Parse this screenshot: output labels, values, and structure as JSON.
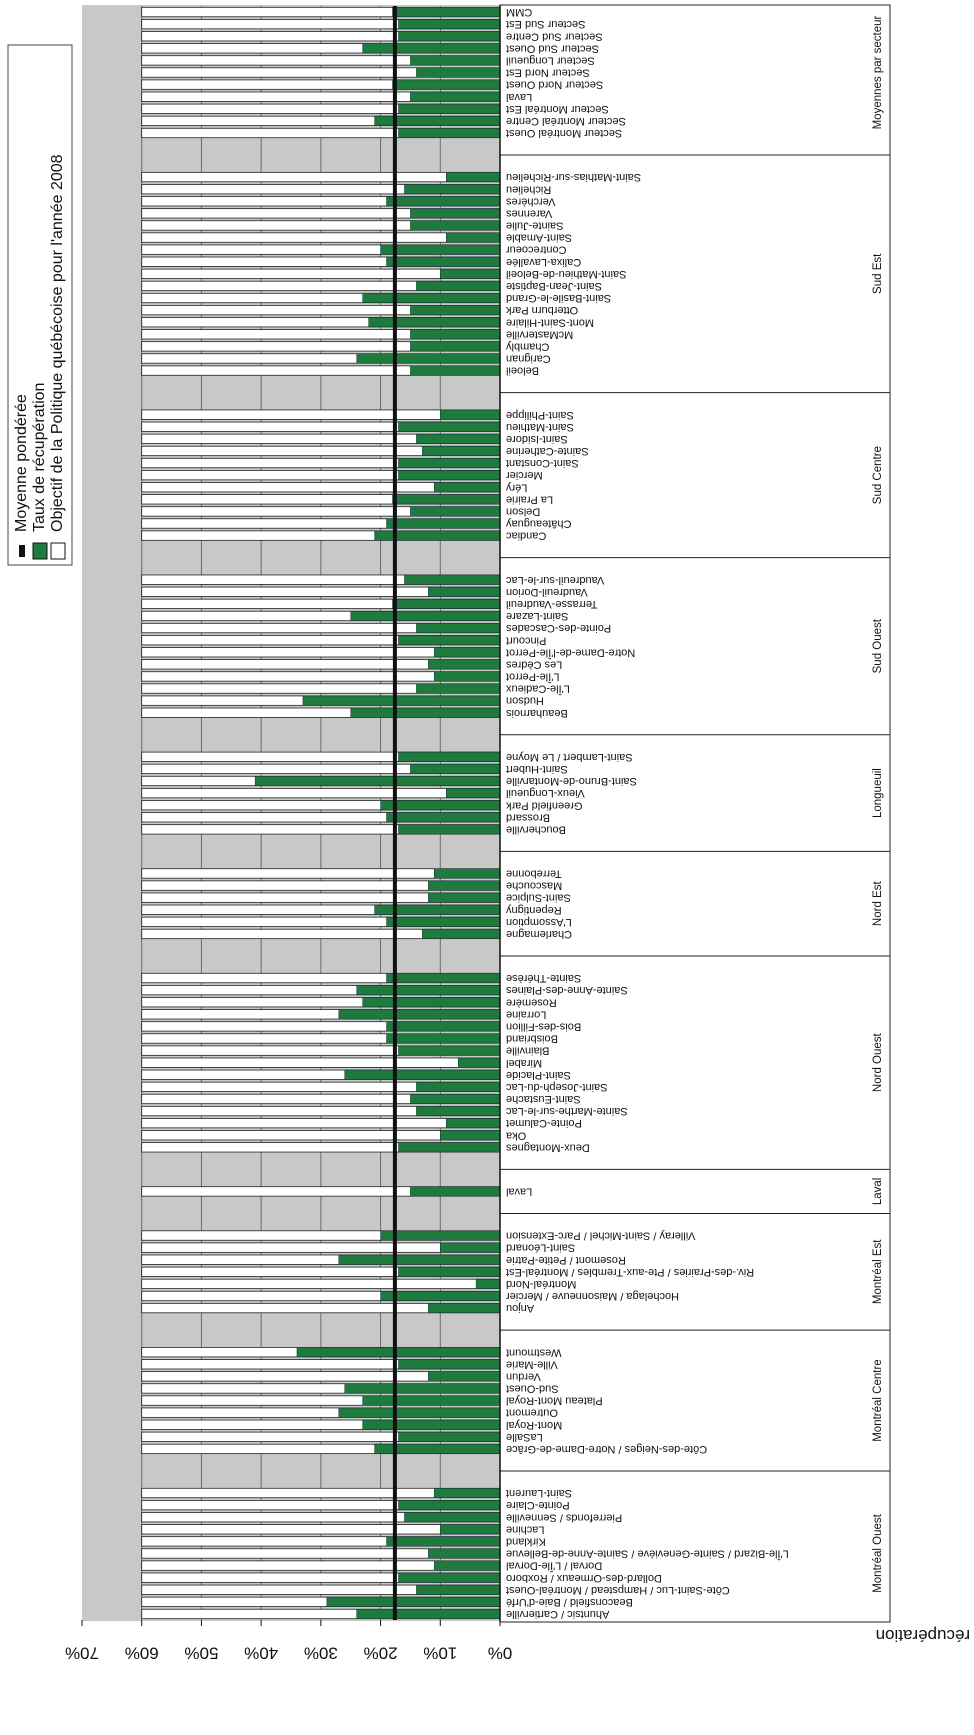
{
  "chart_data": {
    "type": "bar",
    "orientation": "horizontal-rotated",
    "ylabel": "Taux de récupération",
    "xlabel": "",
    "ylim": [
      0,
      70
    ],
    "yticks": [
      "0%",
      "10%",
      "20%",
      "30%",
      "40%",
      "50%",
      "60%",
      "70%"
    ],
    "objective": 60,
    "weighted_average": 17.6,
    "legend": {
      "placement": "top-right",
      "entries": [
        "Objectif de la Politique québécoise pour l'année 2008",
        "Taux de récupération",
        "Moyenne pondérée"
      ]
    },
    "colors": {
      "objective": "#ffffff",
      "rate": "#1e7a3d",
      "background": "#c8c8c8",
      "average": "#111111"
    },
    "groups": [
      {
        "name": "Montréal Ouest",
        "categories": [
          {
            "label": "Ahuntsic / Cartierville",
            "value": 24
          },
          {
            "label": "Beaconsfield / Baie-d'Urfé",
            "value": 29
          },
          {
            "label": "Côte-Saint-Luc / Hampstead / Montréal-Ouest",
            "value": 14
          },
          {
            "label": "Dollard-des-Ormeaux / Roxboro",
            "value": 17
          },
          {
            "label": "Dorval / L'Île-Dorval",
            "value": 11
          },
          {
            "label": "L'Île-Bizard / Sainte-Geneviève / Sainte-Anne-de-Bellevue",
            "value": 12
          },
          {
            "label": "Kirkland",
            "value": 19
          },
          {
            "label": "Lachine",
            "value": 10
          },
          {
            "label": "Pierrefonds / Senneville",
            "value": 16
          },
          {
            "label": "Pointe-Claire",
            "value": 17
          },
          {
            "label": "Saint-Laurent",
            "value": 11
          }
        ]
      },
      {
        "name": "Montréal Centre",
        "categories": [
          {
            "label": "Côte-des-Neiges / Notre-Dame-de-Grâce",
            "value": 21
          },
          {
            "label": "LaSalle",
            "value": 17
          },
          {
            "label": "Mont-Royal",
            "value": 23
          },
          {
            "label": "Outremont",
            "value": 27
          },
          {
            "label": "Plateau Mont-Royal",
            "value": 23
          },
          {
            "label": "Sud-Ouest",
            "value": 26
          },
          {
            "label": "Verdun",
            "value": 12
          },
          {
            "label": "Ville-Marie",
            "value": 17
          },
          {
            "label": "Westmount",
            "value": 34
          }
        ]
      },
      {
        "name": "Montréal Est",
        "categories": [
          {
            "label": "Anjou",
            "value": 12
          },
          {
            "label": "Hochelaga / Maisonneuve / Mercier",
            "value": 20
          },
          {
            "label": "Montréal-Nord",
            "value": 4
          },
          {
            "label": "Riv.-des-Prairies / Pte-aux-Trembles / Montréal-Est",
            "value": 17
          },
          {
            "label": "Rosemont / Petite-Patrie",
            "value": 27
          },
          {
            "label": "Saint-Léonard",
            "value": 10
          },
          {
            "label": "Villeray / Saint-Michel / Parc-Extension",
            "value": 20
          }
        ]
      },
      {
        "name": "Laval",
        "categories": [
          {
            "label": "Laval",
            "value": 15
          }
        ]
      },
      {
        "name": "Nord Ouest",
        "categories": [
          {
            "label": "Deux-Montagnes",
            "value": 17
          },
          {
            "label": "Oka",
            "value": 10
          },
          {
            "label": "Pointe-Calumet",
            "value": 9
          },
          {
            "label": "Sainte-Marthe-sur-le-Lac",
            "value": 14
          },
          {
            "label": "Saint-Eustache",
            "value": 15
          },
          {
            "label": "Saint-Joseph-du-Lac",
            "value": 14
          },
          {
            "label": "Saint-Placide",
            "value": 26
          },
          {
            "label": "Mirabel",
            "value": 7
          },
          {
            "label": "Blainville",
            "value": 17
          },
          {
            "label": "Boisbriand",
            "value": 19
          },
          {
            "label": "Bois-des-Fillion",
            "value": 19
          },
          {
            "label": "Lorraine",
            "value": 27
          },
          {
            "label": "Rosemère",
            "value": 23
          },
          {
            "label": "Sainte-Anne-des-Plaines",
            "value": 24
          },
          {
            "label": "Sainte-Thérèse",
            "value": 19
          }
        ]
      },
      {
        "name": "Nord Est",
        "categories": [
          {
            "label": "Charlemagne",
            "value": 13
          },
          {
            "label": "L'Assomption",
            "value": 19
          },
          {
            "label": "Repentigny",
            "value": 21
          },
          {
            "label": "Saint-Sulpice",
            "value": 12
          },
          {
            "label": "Mascouche",
            "value": 12
          },
          {
            "label": "Terrebonne",
            "value": 11
          }
        ]
      },
      {
        "name": "Longueuil",
        "categories": [
          {
            "label": "Boucherville",
            "value": 17
          },
          {
            "label": "Brossard",
            "value": 19
          },
          {
            "label": "Greenfield Park",
            "value": 20
          },
          {
            "label": "Vieux-Longueuil",
            "value": 9
          },
          {
            "label": "Saint-Bruno-de-Montarville",
            "value": 41
          },
          {
            "label": "Saint-Hubert",
            "value": 15
          },
          {
            "label": "Saint-Lambert / Le Moyne",
            "value": 17
          }
        ]
      },
      {
        "name": "Sud Ouest",
        "categories": [
          {
            "label": "Beauharnois",
            "value": 25
          },
          {
            "label": "Hudson",
            "value": 33
          },
          {
            "label": "L'Île-Cadieux",
            "value": 14
          },
          {
            "label": "L'Île-Perrot",
            "value": 11
          },
          {
            "label": "Les Cèdres",
            "value": 12
          },
          {
            "label": "Notre-Dame-de-l'Île-Perrot",
            "value": 11
          },
          {
            "label": "Pincourt",
            "value": 17
          },
          {
            "label": "Pointe-des-Cascades",
            "value": 14
          },
          {
            "label": "Saint-Lazare",
            "value": 25
          },
          {
            "label": "Terrasse-Vaudreuil",
            "value": 18
          },
          {
            "label": "Vaudreuil-Dorion",
            "value": 12
          },
          {
            "label": "Vaudreuil-sur-le-Lac",
            "value": 16
          }
        ]
      },
      {
        "name": "Sud Centre",
        "categories": [
          {
            "label": "Candiac",
            "value": 21
          },
          {
            "label": "Châteauguay",
            "value": 19
          },
          {
            "label": "Delson",
            "value": 15
          },
          {
            "label": "La Prairie",
            "value": 18
          },
          {
            "label": "Léry",
            "value": 11
          },
          {
            "label": "Mercier",
            "value": 17
          },
          {
            "label": "Saint-Constant",
            "value": 17
          },
          {
            "label": "Sainte-Catherine",
            "value": 13
          },
          {
            "label": "Saint-Isidore",
            "value": 14
          },
          {
            "label": "Saint-Mathieu",
            "value": 17
          },
          {
            "label": "Saint-Philippe",
            "value": 10
          }
        ]
      },
      {
        "name": "Sud Est",
        "categories": [
          {
            "label": "Beloeil",
            "value": 15
          },
          {
            "label": "Carignan",
            "value": 24
          },
          {
            "label": "Chambly",
            "value": 15
          },
          {
            "label": "McMasterville",
            "value": 15
          },
          {
            "label": "Mont-Saint-Hilaire",
            "value": 22
          },
          {
            "label": "Otterburn Park",
            "value": 15
          },
          {
            "label": "Saint-Basile-le-Grand",
            "value": 23
          },
          {
            "label": "Saint-Jean-Baptiste",
            "value": 14
          },
          {
            "label": "Saint-Mathieu-de-Beloeil",
            "value": 10
          },
          {
            "label": "Calixa-Lavallée",
            "value": 19
          },
          {
            "label": "Contrecoeur",
            "value": 20
          },
          {
            "label": "Saint-Amable",
            "value": 9
          },
          {
            "label": "Sainte-Julie",
            "value": 15
          },
          {
            "label": "Varennes",
            "value": 15
          },
          {
            "label": "Verchères",
            "value": 19
          },
          {
            "label": "Richelieu",
            "value": 16
          },
          {
            "label": "Saint-Mathias-sur-Richelieu",
            "value": 9
          }
        ]
      },
      {
        "name": "Moyennes par secteur",
        "categories": [
          {
            "label": "Secteur Montréal Ouest",
            "value": 17
          },
          {
            "label": "Secteur Montréal Centre",
            "value": 21
          },
          {
            "label": "Secteur Montréal Est",
            "value": 17
          },
          {
            "label": "Laval",
            "value": 15
          },
          {
            "label": "Secteur Nord Ouest",
            "value": 18
          },
          {
            "label": "Secteur Nord Est",
            "value": 14
          },
          {
            "label": "Secteur Longueuil",
            "value": 15
          },
          {
            "label": "Secteur Sud Ouest",
            "value": 23
          },
          {
            "label": "Secteur Sud Centre",
            "value": 17
          },
          {
            "label": "Secteur Sud Est",
            "value": 17
          },
          {
            "label": "CMM",
            "value": 18
          }
        ]
      }
    ]
  }
}
